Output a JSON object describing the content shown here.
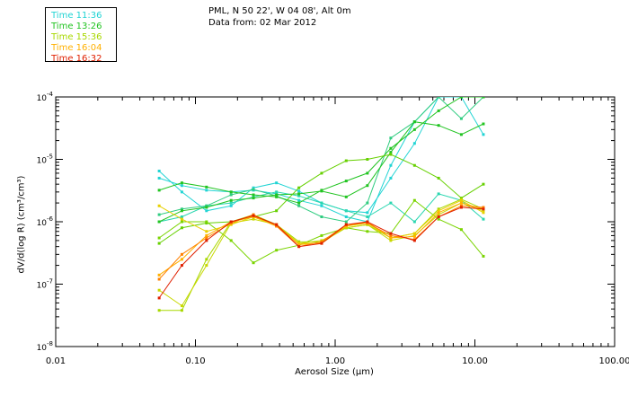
{
  "header": {
    "location": "PML, N 50 22', W 04 08', Alt 0m",
    "date_line": "Data from: 02 Mar 2012"
  },
  "legend": [
    {
      "label": "Time 11:36",
      "color": "#22d4d4"
    },
    {
      "label": "Time 13:26",
      "color": "#22c422"
    },
    {
      "label": "Time 15:36",
      "color": "#a8d800"
    },
    {
      "label": "Time 16:04",
      "color": "#ffb000"
    },
    {
      "label": "Time 16:32",
      "color": "#e02000"
    }
  ],
  "chart_data": {
    "type": "line",
    "xscale": "log",
    "yscale": "log",
    "xlabel": "Aerosol Size (µm)",
    "ylabel": "dV/d(log R) (cm³/cm³)",
    "xlim": [
      0.01,
      100
    ],
    "ylim": [
      1e-08,
      0.0001
    ],
    "xticks": [
      {
        "value": 0.01,
        "label": "0.01"
      },
      {
        "value": 0.1,
        "label": "0.10"
      },
      {
        "value": 1,
        "label": "1.00"
      },
      {
        "value": 10,
        "label": "10.00"
      },
      {
        "value": 100,
        "label": "100.00"
      }
    ],
    "yticks": [
      {
        "value": 1e-08,
        "base": "10",
        "exp": "-8"
      },
      {
        "value": 1e-07,
        "base": "10",
        "exp": "-7"
      },
      {
        "value": 1e-06,
        "base": "10",
        "exp": "-6"
      },
      {
        "value": 1e-05,
        "base": "10",
        "exp": "-5"
      },
      {
        "value": 0.0001,
        "base": "10",
        "exp": "-4"
      }
    ],
    "x": [
      0.055,
      0.08,
      0.12,
      0.18,
      0.26,
      0.38,
      0.55,
      0.8,
      1.2,
      1.7,
      2.5,
      3.7,
      5.5,
      8.0,
      11.5
    ],
    "series": [
      {
        "color": "#22d4d4",
        "values": [
          6.5e-06,
          3e-06,
          1.5e-06,
          1.8e-06,
          3.5e-06,
          4.2e-06,
          3.1e-06,
          2e-06,
          1.5e-06,
          1.4e-06,
          5e-06,
          1.8e-05,
          0.0001,
          0.0001,
          2.5e-05
        ]
      },
      {
        "color": "#22d4d4",
        "values": [
          5e-06,
          3.8e-06,
          3.2e-06,
          3e-06,
          3.2e-06,
          2.8e-06,
          2.2e-06,
          1.8e-06,
          1.2e-06,
          1e-06,
          8e-06,
          4e-05,
          0.0001,
          0.0001,
          0.0001
        ]
      },
      {
        "color": "#2ad6b0",
        "values": [
          1e-06,
          1.2e-06,
          1.8e-06,
          2e-06,
          2.5e-06,
          3e-06,
          2.6e-06,
          2e-06,
          1.5e-06,
          1.2e-06,
          2e-06,
          1e-06,
          2.8e-06,
          2.2e-06,
          1.1e-06
        ]
      },
      {
        "color": "#30cc80",
        "values": [
          1.3e-06,
          1.6e-06,
          1.8e-06,
          2.7e-06,
          3.3e-06,
          2.6e-06,
          1.8e-06,
          1.2e-06,
          1e-06,
          2e-06,
          2.2e-05,
          4e-05,
          0.0001,
          4.5e-05,
          0.0001
        ]
      },
      {
        "color": "#22c422",
        "values": [
          3.2e-06,
          4.2e-06,
          3.6e-06,
          3e-06,
          2.7e-06,
          2.5e-06,
          2e-06,
          3.2e-06,
          4.5e-06,
          6e-06,
          1.5e-05,
          3e-05,
          6e-05,
          0.0001,
          0.0001
        ]
      },
      {
        "color": "#22c422",
        "values": [
          1e-06,
          1.5e-06,
          1.7e-06,
          2.2e-06,
          2.4e-06,
          2.7e-06,
          2.8e-06,
          3.1e-06,
          2.5e-06,
          3.8e-06,
          1.3e-05,
          4e-05,
          3.5e-05,
          2.5e-05,
          3.7e-05
        ]
      },
      {
        "color": "#66d000",
        "values": [
          4.5e-07,
          8e-07,
          9.5e-07,
          1e-06,
          1.2e-06,
          1.5e-06,
          3.5e-06,
          6e-06,
          9.5e-06,
          1e-05,
          1.2e-05,
          8e-06,
          5e-06,
          2.4e-06,
          4e-06
        ]
      },
      {
        "color": "#7ad400",
        "values": [
          5.5e-07,
          1e-06,
          1e-06,
          5e-07,
          2.2e-07,
          3.5e-07,
          4.2e-07,
          6e-07,
          8e-07,
          7e-07,
          6.5e-07,
          2.2e-06,
          1.1e-06,
          7.5e-07,
          2.8e-07
        ]
      },
      {
        "color": "#a8d800",
        "values": [
          3.8e-08,
          3.8e-08,
          2.5e-07,
          1e-06,
          1.3e-06,
          9e-07,
          4.8e-07,
          4.7e-07,
          8e-07,
          9e-07,
          5.5e-07,
          6.5e-07,
          1.6e-06,
          2.3e-06,
          1.6e-06
        ]
      },
      {
        "color": "#c8d800",
        "values": [
          8e-08,
          4.5e-08,
          2e-07,
          9.5e-07,
          1.1e-06,
          9e-07,
          4.5e-07,
          5e-07,
          8e-07,
          9e-07,
          5e-07,
          6e-07,
          1.3e-06,
          2e-06,
          1.5e-06
        ]
      },
      {
        "color": "#e8d000",
        "values": [
          1.8e-06,
          1.1e-06,
          7e-07,
          9e-07,
          1.2e-06,
          8.5e-07,
          4.5e-07,
          4.5e-07,
          8.5e-07,
          9.5e-07,
          5.5e-07,
          6.5e-07,
          1.5e-06,
          2.2e-06,
          1.4e-06
        ]
      },
      {
        "color": "#ffb000",
        "values": [
          1.4e-07,
          2.5e-07,
          6e-07,
          1e-06,
          1.2e-06,
          9e-07,
          4.3e-07,
          4.6e-07,
          8.5e-07,
          1e-06,
          5.5e-07,
          5.8e-07,
          1.4e-06,
          2e-06,
          1.6e-06
        ]
      },
      {
        "color": "#ff8000",
        "values": [
          1.2e-07,
          3e-07,
          5.5e-07,
          9.5e-07,
          1.3e-06,
          8.5e-07,
          4e-07,
          4.8e-07,
          9e-07,
          9.5e-07,
          6e-07,
          5.2e-07,
          1.2e-06,
          1.8e-06,
          1.7e-06
        ]
      },
      {
        "color": "#e02000",
        "values": [
          6e-08,
          2e-07,
          5e-07,
          1e-06,
          1.25e-06,
          9e-07,
          4e-07,
          4.5e-07,
          9e-07,
          1e-06,
          6.5e-07,
          5e-07,
          1.2e-06,
          1.7e-06,
          1.6e-06
        ]
      }
    ]
  }
}
